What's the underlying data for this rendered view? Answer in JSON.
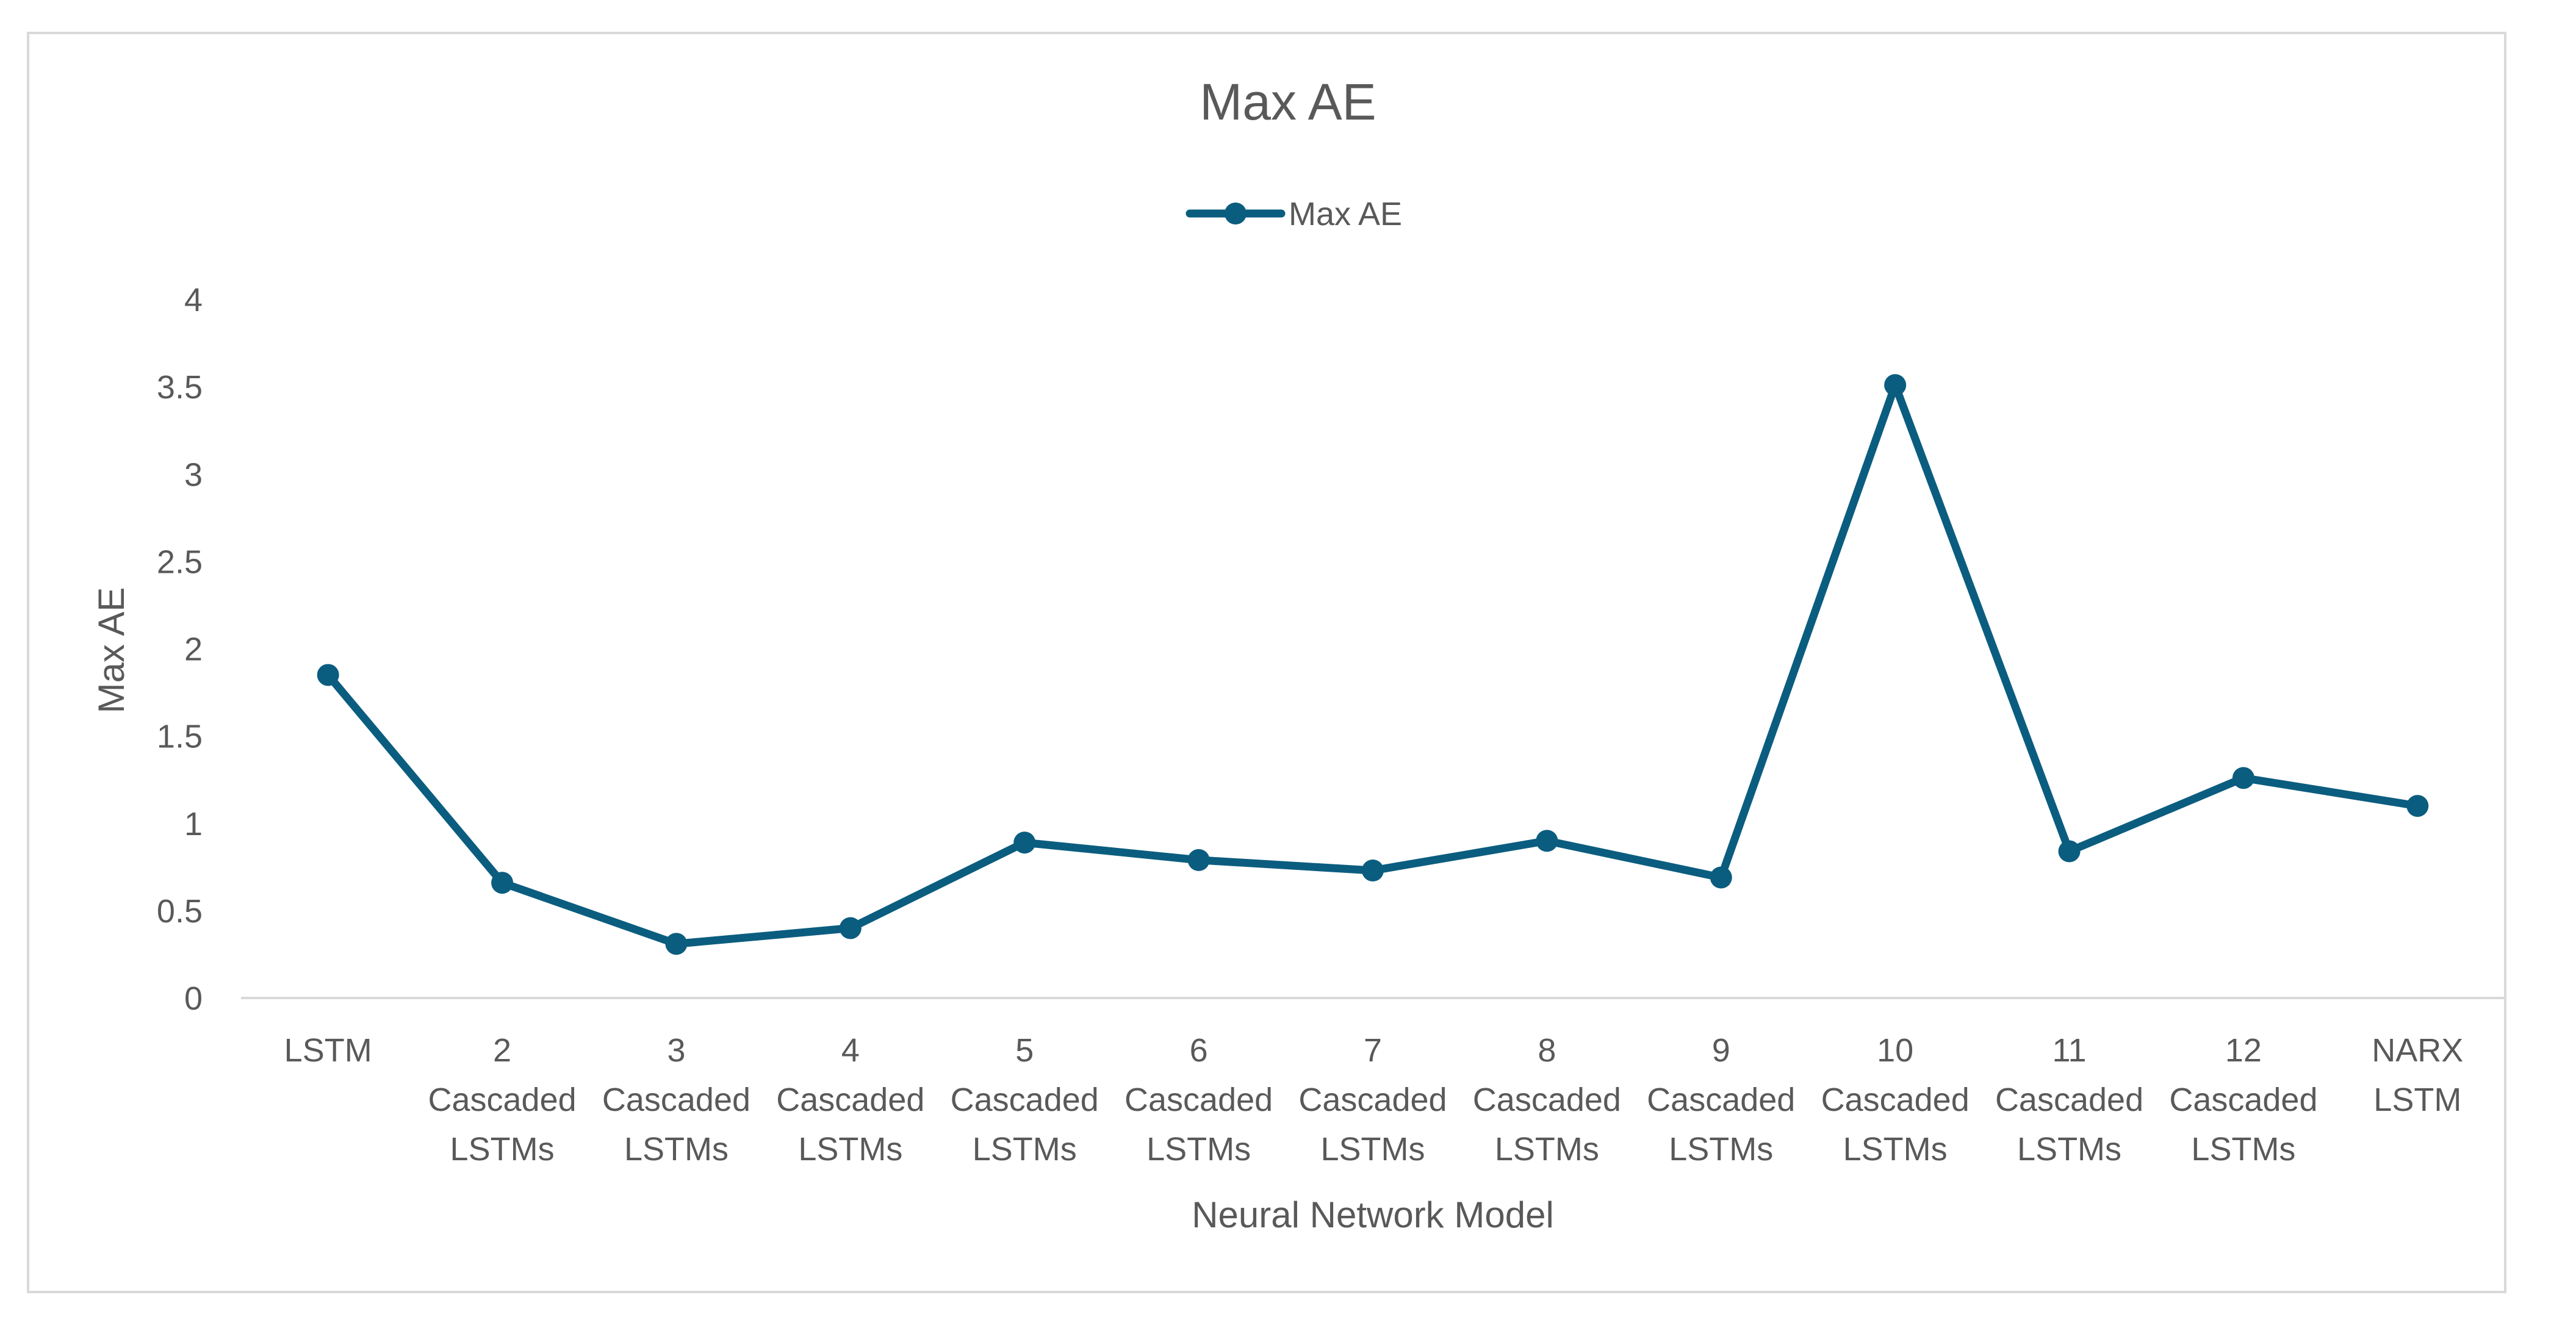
{
  "chart_data": {
    "type": "line",
    "title": "Max AE",
    "xlabel": "Neural Network Model",
    "ylabel": "Max AE",
    "ylim": [
      0,
      4
    ],
    "yticks": [
      0,
      0.5,
      1,
      1.5,
      2,
      2.5,
      3,
      3.5,
      4
    ],
    "ytick_labels": [
      "0",
      "0.5",
      "1",
      "1.5",
      "2",
      "2.5",
      "3",
      "3.5",
      "4"
    ],
    "grid": false,
    "legend_position": "top-center",
    "categories": [
      [
        "LSTM"
      ],
      [
        "2",
        "Cascaded",
        "LSTMs"
      ],
      [
        "3",
        "Cascaded",
        "LSTMs"
      ],
      [
        "4",
        "Cascaded",
        "LSTMs"
      ],
      [
        "5",
        "Cascaded",
        "LSTMs"
      ],
      [
        "6",
        "Cascaded",
        "LSTMs"
      ],
      [
        "7",
        "Cascaded",
        "LSTMs"
      ],
      [
        "8",
        "Cascaded",
        "LSTMs"
      ],
      [
        "9",
        "Cascaded",
        "LSTMs"
      ],
      [
        "10",
        "Cascaded",
        "LSTMs"
      ],
      [
        "11",
        "Cascaded",
        "LSTMs"
      ],
      [
        "12",
        "Cascaded",
        "LSTMs"
      ],
      [
        "NARX",
        "LSTM"
      ]
    ],
    "series": [
      {
        "name": "Max AE",
        "color": "#0b5d7f",
        "values": [
          1.85,
          0.66,
          0.31,
          0.4,
          0.89,
          0.79,
          0.73,
          0.9,
          0.69,
          3.51,
          0.84,
          1.26,
          1.1
        ]
      }
    ]
  }
}
